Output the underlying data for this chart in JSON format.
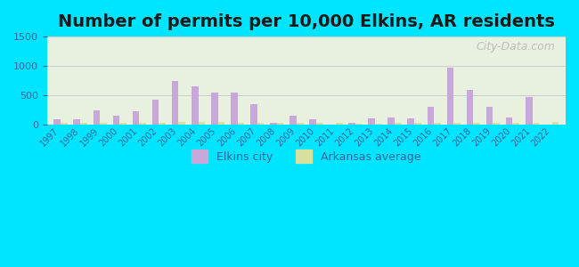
{
  "title": "Number of permits per 10,000 Elkins, AR residents",
  "years": [
    1997,
    1998,
    1999,
    2000,
    2001,
    2002,
    2003,
    2004,
    2005,
    2006,
    2007,
    2008,
    2009,
    2010,
    2011,
    2012,
    2013,
    2014,
    2015,
    2016,
    2017,
    2018,
    2019,
    2020,
    2021,
    2022
  ],
  "elkins_values": [
    100,
    100,
    250,
    150,
    230,
    420,
    740,
    660,
    550,
    545,
    350,
    30,
    150,
    90,
    0,
    30,
    110,
    120,
    110,
    310,
    970,
    600,
    310,
    130,
    470,
    0
  ],
  "arkansas_values": [
    30,
    30,
    30,
    30,
    30,
    30,
    50,
    50,
    50,
    30,
    30,
    30,
    30,
    30,
    30,
    20,
    20,
    30,
    30,
    30,
    30,
    30,
    30,
    30,
    30,
    50
  ],
  "elkins_color": "#c8a8d8",
  "arkansas_color": "#d8e0a0",
  "ylim": [
    0,
    1500
  ],
  "yticks": [
    0,
    500,
    1000,
    1500
  ],
  "background_outer": "#00e5ff",
  "background_inner": "#e8f0e0",
  "grid_color": "#cccccc",
  "title_fontsize": 14,
  "watermark": "City-Data.com",
  "tick_color": "#336699",
  "title_color": "#1a1a1a"
}
